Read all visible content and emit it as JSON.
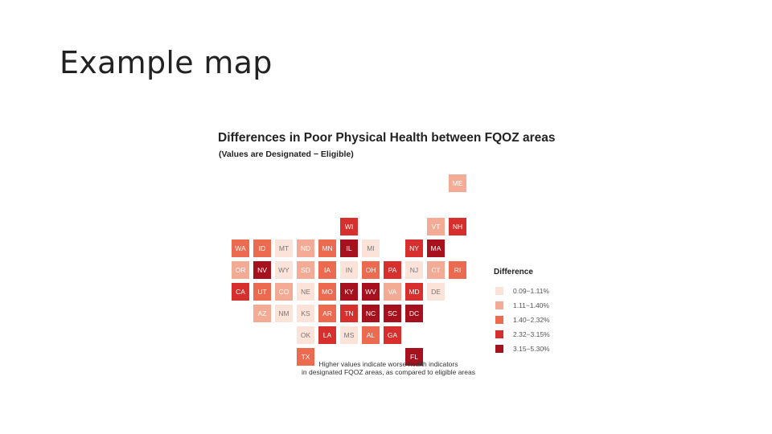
{
  "slide": {
    "title": "Example map"
  },
  "map": {
    "title": "Differences in Poor Physical Health between FQOZ areas",
    "subtitle": "(Values are Designated − Eligible)",
    "caption_line1": "Higher values indicate worse health indicators",
    "caption_line2": "in designated FQOZ areas, as compared to eligible areas",
    "colors": {
      "bin1": "#fbe3d9",
      "bin2": "#f3ab96",
      "bin3": "#ec6a50",
      "bin4": "#d62f2d",
      "bin5": "#a6111d"
    },
    "legend": {
      "title": "Difference",
      "items": [
        {
          "label": "0.09−1.11%",
          "bin": "bin1"
        },
        {
          "label": "1.11−1.40%",
          "bin": "bin2"
        },
        {
          "label": "1.40−2.32%",
          "bin": "bin3"
        },
        {
          "label": "2.32−3.15%",
          "bin": "bin4"
        },
        {
          "label": "3.15−5.30%",
          "bin": "bin5"
        }
      ]
    },
    "states": [
      {
        "abbr": "ME",
        "col": 10,
        "row": 0,
        "bin": "bin2"
      },
      {
        "abbr": "WI",
        "col": 5,
        "row": 1,
        "bin": "bin4"
      },
      {
        "abbr": "VT",
        "col": 9,
        "row": 1,
        "bin": "bin2"
      },
      {
        "abbr": "NH",
        "col": 10,
        "row": 1,
        "bin": "bin4"
      },
      {
        "abbr": "WA",
        "col": 0,
        "row": 2,
        "bin": "bin3"
      },
      {
        "abbr": "ID",
        "col": 1,
        "row": 2,
        "bin": "bin3"
      },
      {
        "abbr": "MT",
        "col": 2,
        "row": 2,
        "bin": "bin1"
      },
      {
        "abbr": "ND",
        "col": 3,
        "row": 2,
        "bin": "bin2"
      },
      {
        "abbr": "MN",
        "col": 4,
        "row": 2,
        "bin": "bin3"
      },
      {
        "abbr": "IL",
        "col": 5,
        "row": 2,
        "bin": "bin5"
      },
      {
        "abbr": "MI",
        "col": 6,
        "row": 2,
        "bin": "bin1"
      },
      {
        "abbr": "NY",
        "col": 8,
        "row": 2,
        "bin": "bin4"
      },
      {
        "abbr": "MA",
        "col": 9,
        "row": 2,
        "bin": "bin5"
      },
      {
        "abbr": "OR",
        "col": 0,
        "row": 3,
        "bin": "bin2"
      },
      {
        "abbr": "NV",
        "col": 1,
        "row": 3,
        "bin": "bin5"
      },
      {
        "abbr": "WY",
        "col": 2,
        "row": 3,
        "bin": "bin1"
      },
      {
        "abbr": "SD",
        "col": 3,
        "row": 3,
        "bin": "bin2"
      },
      {
        "abbr": "IA",
        "col": 4,
        "row": 3,
        "bin": "bin3"
      },
      {
        "abbr": "IN",
        "col": 5,
        "row": 3,
        "bin": "bin1"
      },
      {
        "abbr": "OH",
        "col": 6,
        "row": 3,
        "bin": "bin3"
      },
      {
        "abbr": "PA",
        "col": 7,
        "row": 3,
        "bin": "bin4"
      },
      {
        "abbr": "NJ",
        "col": 8,
        "row": 3,
        "bin": "bin1"
      },
      {
        "abbr": "CT",
        "col": 9,
        "row": 3,
        "bin": "bin2"
      },
      {
        "abbr": "RI",
        "col": 10,
        "row": 3,
        "bin": "bin3"
      },
      {
        "abbr": "CA",
        "col": 0,
        "row": 4,
        "bin": "bin4"
      },
      {
        "abbr": "UT",
        "col": 1,
        "row": 4,
        "bin": "bin3"
      },
      {
        "abbr": "CO",
        "col": 2,
        "row": 4,
        "bin": "bin2"
      },
      {
        "abbr": "NE",
        "col": 3,
        "row": 4,
        "bin": "bin1"
      },
      {
        "abbr": "MO",
        "col": 4,
        "row": 4,
        "bin": "bin3"
      },
      {
        "abbr": "KY",
        "col": 5,
        "row": 4,
        "bin": "bin5"
      },
      {
        "abbr": "WV",
        "col": 6,
        "row": 4,
        "bin": "bin5"
      },
      {
        "abbr": "VA",
        "col": 7,
        "row": 4,
        "bin": "bin2"
      },
      {
        "abbr": "MD",
        "col": 8,
        "row": 4,
        "bin": "bin4"
      },
      {
        "abbr": "DE",
        "col": 9,
        "row": 4,
        "bin": "bin1"
      },
      {
        "abbr": "AZ",
        "col": 1,
        "row": 5,
        "bin": "bin2"
      },
      {
        "abbr": "NM",
        "col": 2,
        "row": 5,
        "bin": "bin1"
      },
      {
        "abbr": "KS",
        "col": 3,
        "row": 5,
        "bin": "bin1"
      },
      {
        "abbr": "AR",
        "col": 4,
        "row": 5,
        "bin": "bin3"
      },
      {
        "abbr": "TN",
        "col": 5,
        "row": 5,
        "bin": "bin4"
      },
      {
        "abbr": "NC",
        "col": 6,
        "row": 5,
        "bin": "bin5"
      },
      {
        "abbr": "SC",
        "col": 7,
        "row": 5,
        "bin": "bin5"
      },
      {
        "abbr": "DC",
        "col": 8,
        "row": 5,
        "bin": "bin5"
      },
      {
        "abbr": "OK",
        "col": 3,
        "row": 6,
        "bin": "bin1"
      },
      {
        "abbr": "LA",
        "col": 4,
        "row": 6,
        "bin": "bin4"
      },
      {
        "abbr": "MS",
        "col": 5,
        "row": 6,
        "bin": "bin1"
      },
      {
        "abbr": "AL",
        "col": 6,
        "row": 6,
        "bin": "bin3"
      },
      {
        "abbr": "GA",
        "col": 7,
        "row": 6,
        "bin": "bin4"
      },
      {
        "abbr": "TX",
        "col": 3,
        "row": 7,
        "bin": "bin3"
      },
      {
        "abbr": "FL",
        "col": 8,
        "row": 7,
        "bin": "bin5"
      }
    ]
  }
}
